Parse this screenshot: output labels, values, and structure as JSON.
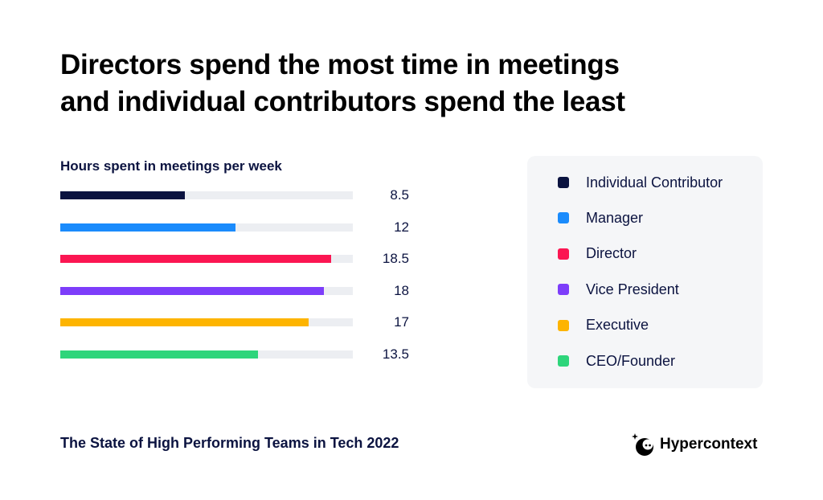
{
  "title_lines": [
    "Directors spend the most time in meetings",
    "and individual contributors spend the least"
  ],
  "footer": {
    "source": "The State of High Performing Teams in Tech 2022",
    "brand": "Hypercontext"
  },
  "chart_data": {
    "type": "bar",
    "orientation": "horizontal",
    "title": "Hours spent in meetings per week",
    "xlim": [
      0,
      20
    ],
    "grid": false,
    "legend_position": "right",
    "categories": [
      "Individual Contributor",
      "Manager",
      "Director",
      "Vice President",
      "Executive",
      "CEO/Founder"
    ],
    "values": [
      8.5,
      12,
      18.5,
      18,
      17,
      13.5
    ],
    "value_labels": [
      "8.5",
      "12",
      "18.5",
      "18",
      "17",
      "13.5"
    ],
    "colors": [
      "#0b1340",
      "#1a8bfc",
      "#fb1652",
      "#7d3dfa",
      "#fdb400",
      "#2ed57b"
    ]
  }
}
